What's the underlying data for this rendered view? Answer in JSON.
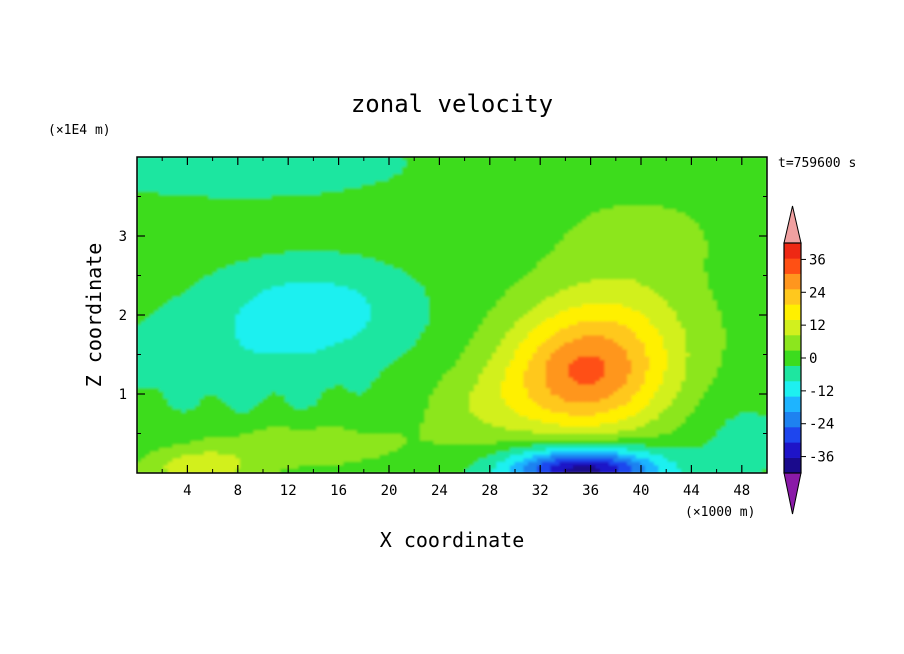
{
  "chart_data": {
    "type": "heatmap",
    "title": "zonal velocity",
    "xlabel": "X coordinate",
    "ylabel": "Z coordinate",
    "x_scale_label": "(×1000 m)",
    "y_scale_label": "(×1E4 m)",
    "time_label": "t=759600 s",
    "xlim": [
      0,
      50
    ],
    "ylim": [
      0,
      4
    ],
    "x_ticks": [
      "4",
      "8",
      "12",
      "16",
      "20",
      "24",
      "28",
      "32",
      "36",
      "40",
      "44",
      "48"
    ],
    "y_ticks": [
      "1",
      "2",
      "3"
    ],
    "colorbar": {
      "tick_labels": [
        "36",
        "24",
        "12",
        "0",
        "-12",
        "-24",
        "-36"
      ],
      "min": -42,
      "max": 42,
      "levels": [
        -42,
        -36,
        -30,
        -24,
        -18,
        -12,
        -6,
        0,
        6,
        12,
        18,
        24,
        30,
        36,
        42
      ],
      "colors": [
        "#6a0fa8",
        "#1a0a8c",
        "#1e14c8",
        "#1e46ee",
        "#1e82f0",
        "#1eb4ff",
        "#1ef0f0",
        "#1ee6a0",
        "#3cdc1e",
        "#8ce61e",
        "#d2f01e",
        "#fff000",
        "#ffc81e",
        "#ff961e",
        "#ff5014",
        "#ee2814",
        "#f0a0a0"
      ],
      "underflow_color": "#8a1aa8",
      "overflow_color": "#f0a0a0"
    },
    "features": [
      {
        "x": 35.5,
        "z": 1.2,
        "value": 30
      },
      {
        "x": 35.5,
        "z": 0.1,
        "value": -40
      },
      {
        "x": 14,
        "z": 2.1,
        "value": -10
      },
      {
        "x": 5,
        "z": 0.1,
        "value": 16
      }
    ]
  }
}
